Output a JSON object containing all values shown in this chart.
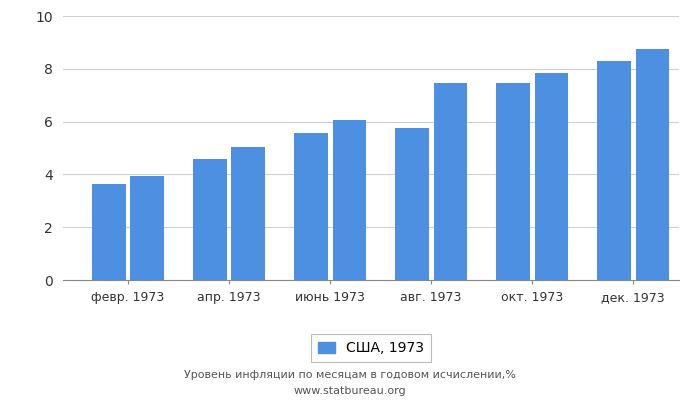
{
  "x_labels": [
    "февр. 1973",
    "апр. 1973",
    "июнь 1973",
    "авг. 1973",
    "окт. 1973",
    "дек. 1973"
  ],
  "values": [
    3.65,
    3.95,
    4.6,
    5.05,
    5.55,
    6.05,
    5.75,
    7.45,
    7.45,
    7.85,
    8.3,
    8.75
  ],
  "bar_color": "#4d8fe0",
  "ylim": [
    0,
    10
  ],
  "yticks": [
    0,
    2,
    4,
    6,
    8,
    10
  ],
  "legend_label": "США, 1973",
  "footer_line1": "Уровень инфляции по месяцам в годовом исчислении,%",
  "footer_line2": "www.statbureau.org",
  "background_color": "#ffffff",
  "grid_color": "#d0d0d0"
}
